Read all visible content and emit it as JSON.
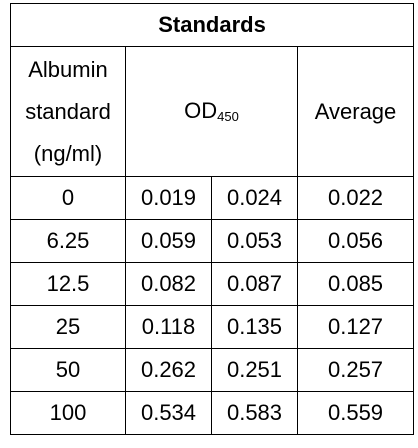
{
  "title": "Standards",
  "headers": {
    "albumin_line1": "Albumin",
    "albumin_line2": "standard",
    "albumin_line3": "(ng/ml)",
    "od_main": "OD",
    "od_sub": "450",
    "average": "Average"
  },
  "rows": [
    {
      "standard": "0",
      "od1": "0.019",
      "od2": "0.024",
      "average": "0.022"
    },
    {
      "standard": "6.25",
      "od1": "0.059",
      "od2": "0.053",
      "average": "0.056"
    },
    {
      "standard": "12.5",
      "od1": "0.082",
      "od2": "0.087",
      "average": "0.085"
    },
    {
      "standard": "25",
      "od1": "0.118",
      "od2": "0.135",
      "average": "0.127"
    },
    {
      "standard": "50",
      "od1": "0.262",
      "od2": "0.251",
      "average": "0.257"
    },
    {
      "standard": "100",
      "od1": "0.534",
      "od2": "0.583",
      "average": "0.559"
    }
  ]
}
